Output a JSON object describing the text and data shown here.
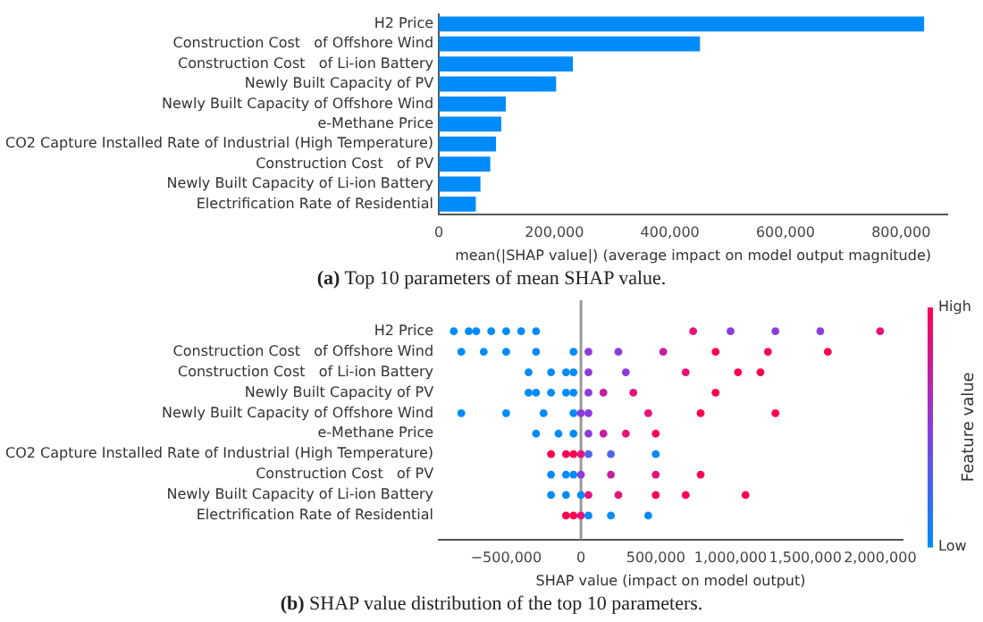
{
  "chart_data": [
    {
      "type": "bar",
      "orientation": "horizontal",
      "title": "(a) Top 10 parameters of mean SHAP value.",
      "xlabel": "mean(|SHAP value|) (average impact on model output magnitude)",
      "categories": [
        "H2 Price",
        "Construction Cost   of Offshore Wind",
        "Construction Cost   of Li-ion Battery",
        "Newly Built Capacity of PV",
        "Newly Built Capacity of Offshore Wind",
        "e-Methane Price",
        "CO2 Capture Installed Rate of Industrial (High Temperature)",
        "Construction Cost   of PV",
        "Newly Built Capacity of Li-ion Battery",
        "Electrification Rate of Residential"
      ],
      "values": [
        840000,
        452000,
        232000,
        203000,
        116000,
        108000,
        99000,
        89000,
        72000,
        64000
      ],
      "color": "#008bfb",
      "xlim": [
        0,
        880000
      ],
      "xticks": [
        0,
        {
          "value": 200000,
          "label": "200,000"
        },
        {
          "value": 400000,
          "label": "400,000"
        },
        {
          "value": 600000,
          "label": "600,000"
        },
        {
          "value": 800000,
          "label": "800,000"
        }
      ],
      "grid": false,
      "legend": false
    },
    {
      "type": "scatter",
      "orientation": "horizontal",
      "title": "(b) SHAP value distribution of the top 10 parameters.",
      "xlabel": "SHAP value (impact on model output)",
      "clabel": "Feature value",
      "annotations": [
        "High",
        "Low"
      ],
      "categories": [
        "H2 Price",
        "Construction Cost   of Offshore Wind",
        "Construction Cost   of Li-ion Battery",
        "Newly Built Capacity of PV",
        "Newly Built Capacity of Offshore Wind",
        "e-Methane Price",
        "CO2 Capture Installed Rate of Industrial (High Temperature)",
        "Construction Cost   of PV",
        "Newly Built Capacity of Li-ion Battery",
        "Electrification Rate of Residential"
      ],
      "series": [
        {
          "x": [
            "H2 Price",
            "H2 Price",
            "H2 Price",
            "H2 Price",
            "H2 Price",
            "H2 Price",
            "H2 Price",
            "H2 Price",
            "H2 Price",
            "H2 Price",
            "H2 Price",
            "H2 Price"
          ],
          "values": [
            -850000,
            -750000,
            -700000,
            -600000,
            -500000,
            -400000,
            -300000,
            750000,
            1000000,
            1300000,
            1600000,
            2000000
          ],
          "colors": [
            "#008bfb",
            "#008bfb",
            "#008bfb",
            "#008bfb",
            "#008bfb",
            "#008bfb",
            "#008bfb",
            "#e81378",
            "#8c3cdc",
            "#8c3cdc",
            "#8c3cdc",
            "#e81378"
          ]
        },
        {
          "x": [
            "Construction Cost   of Offshore Wind",
            "Construction Cost   of Offshore Wind",
            "Construction Cost   of Offshore Wind",
            "Construction Cost   of Offshore Wind",
            "Construction Cost   of Offshore Wind",
            "Construction Cost   of Offshore Wind",
            "Construction Cost   of Offshore Wind",
            "Construction Cost   of Offshore Wind",
            "Construction Cost   of Offshore Wind",
            "Construction Cost   of Offshore Wind",
            "Construction Cost   of Offshore Wind"
          ],
          "values": [
            -800000,
            -650000,
            -500000,
            -300000,
            -50000,
            50000,
            250000,
            550000,
            900000,
            1250000,
            1650000
          ],
          "colors": [
            "#008bfb",
            "#008bfb",
            "#008bfb",
            "#008bfb",
            "#008bfb",
            "#8c3cdc",
            "#8c3cdc",
            "#c51e9f",
            "#ff0051",
            "#ff0051",
            "#ff0051"
          ]
        },
        {
          "x": [
            "Construction Cost   of Li-ion Battery",
            "Construction Cost   of Li-ion Battery",
            "Construction Cost   of Li-ion Battery",
            "Construction Cost   of Li-ion Battery",
            "Construction Cost   of Li-ion Battery",
            "Construction Cost   of Li-ion Battery",
            "Construction Cost   of Li-ion Battery",
            "Construction Cost   of Li-ion Battery",
            "Construction Cost   of Li-ion Battery"
          ],
          "values": [
            -350000,
            -200000,
            -100000,
            -50000,
            50000,
            300000,
            700000,
            1050000,
            1200000
          ],
          "colors": [
            "#008bfb",
            "#008bfb",
            "#008bfb",
            "#008bfb",
            "#8c3cdc",
            "#8c3cdc",
            "#e81378",
            "#ff0051",
            "#ff0051"
          ]
        },
        {
          "x": [
            "Newly Built Capacity of PV",
            "Newly Built Capacity of PV",
            "Newly Built Capacity of PV",
            "Newly Built Capacity of PV",
            "Newly Built Capacity of PV",
            "Newly Built Capacity of PV",
            "Newly Built Capacity of PV",
            "Newly Built Capacity of PV",
            "Newly Built Capacity of PV"
          ],
          "values": [
            -350000,
            -300000,
            -200000,
            -100000,
            -50000,
            50000,
            150000,
            350000,
            900000
          ],
          "colors": [
            "#008bfb",
            "#008bfb",
            "#008bfb",
            "#008bfb",
            "#008bfb",
            "#8c3cdc",
            "#c51e9f",
            "#e81378",
            "#ff0051"
          ]
        },
        {
          "x": [
            "Newly Built Capacity of Offshore Wind",
            "Newly Built Capacity of Offshore Wind",
            "Newly Built Capacity of Offshore Wind",
            "Newly Built Capacity of Offshore Wind",
            "Newly Built Capacity of Offshore Wind",
            "Newly Built Capacity of Offshore Wind",
            "Newly Built Capacity of Offshore Wind",
            "Newly Built Capacity of Offshore Wind",
            "Newly Built Capacity of Offshore Wind"
          ],
          "values": [
            -800000,
            -500000,
            -250000,
            -50000,
            0,
            50000,
            450000,
            800000,
            1300000
          ],
          "colors": [
            "#008bfb",
            "#008bfb",
            "#008bfb",
            "#008bfb",
            "#8c3cdc",
            "#8c3cdc",
            "#e81378",
            "#ff0051",
            "#ff0051"
          ]
        },
        {
          "x": [
            "e-Methane Price",
            "e-Methane Price",
            "e-Methane Price",
            "e-Methane Price",
            "e-Methane Price",
            "e-Methane Price",
            "e-Methane Price"
          ],
          "values": [
            -300000,
            -150000,
            -50000,
            50000,
            150000,
            300000,
            500000
          ],
          "colors": [
            "#008bfb",
            "#008bfb",
            "#008bfb",
            "#8c3cdc",
            "#c51e9f",
            "#e81378",
            "#ff0051"
          ]
        },
        {
          "x": [
            "CO2 Capture Installed Rate of Industrial (High Temperature)",
            "CO2 Capture Installed Rate of Industrial (High Temperature)",
            "CO2 Capture Installed Rate of Industrial (High Temperature)",
            "CO2 Capture Installed Rate of Industrial (High Temperature)",
            "CO2 Capture Installed Rate of Industrial (High Temperature)",
            "CO2 Capture Installed Rate of Industrial (High Temperature)",
            "CO2 Capture Installed Rate of Industrial (High Temperature)"
          ],
          "values": [
            -200000,
            -100000,
            -50000,
            0,
            50000,
            200000,
            500000
          ],
          "colors": [
            "#ff0051",
            "#ff0051",
            "#ff0051",
            "#e81378",
            "#5066ea",
            "#5066ea",
            "#008bfb"
          ]
        },
        {
          "x": [
            "Construction Cost   of PV",
            "Construction Cost   of PV",
            "Construction Cost   of PV",
            "Construction Cost   of PV",
            "Construction Cost   of PV",
            "Construction Cost   of PV",
            "Construction Cost   of PV"
          ],
          "values": [
            -200000,
            -100000,
            -50000,
            0,
            200000,
            500000,
            800000
          ],
          "colors": [
            "#008bfb",
            "#008bfb",
            "#008bfb",
            "#8c3cdc",
            "#c51e9f",
            "#e81378",
            "#ff0051"
          ]
        },
        {
          "x": [
            "Newly Built Capacity of Li-ion Battery",
            "Newly Built Capacity of Li-ion Battery",
            "Newly Built Capacity of Li-ion Battery",
            "Newly Built Capacity of Li-ion Battery",
            "Newly Built Capacity of Li-ion Battery",
            "Newly Built Capacity of Li-ion Battery",
            "Newly Built Capacity of Li-ion Battery",
            "Newly Built Capacity of Li-ion Battery"
          ],
          "values": [
            -200000,
            -100000,
            0,
            50000,
            250000,
            500000,
            700000,
            1100000
          ],
          "colors": [
            "#008bfb",
            "#008bfb",
            "#008bfb",
            "#e81378",
            "#e81378",
            "#ff0051",
            "#ff0051",
            "#ff0051"
          ]
        },
        {
          "x": [
            "Electrification Rate of Residential",
            "Electrification Rate of Residential",
            "Electrification Rate of Residential",
            "Electrification Rate of Residential",
            "Electrification Rate of Residential",
            "Electrification Rate of Residential"
          ],
          "values": [
            -100000,
            -50000,
            0,
            50000,
            200000,
            450000
          ],
          "colors": [
            "#ff0051",
            "#ff0051",
            "#e81378",
            "#008bfb",
            "#008bfb",
            "#008bfb"
          ]
        }
      ],
      "xlim": [
        -950000,
        2150000
      ],
      "xticks": [
        {
          "value": -500000,
          "label": "−500,000"
        },
        0,
        {
          "value": 500000,
          "label": "500,000"
        },
        {
          "value": 1000000,
          "label": "1,000,000"
        },
        {
          "value": 1500000,
          "label": "1,500,000"
        },
        {
          "value": 2000000,
          "label": "2,000,000"
        }
      ],
      "ref_lines": [
        {
          "axis": "x",
          "value": 0,
          "color": "#999999"
        }
      ],
      "marker": "circle",
      "grid": false,
      "legend": false
    }
  ]
}
